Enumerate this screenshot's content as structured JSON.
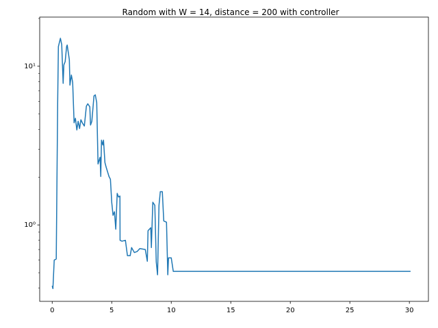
{
  "chart_data": {
    "type": "line",
    "title": "Random with W = 14, distance = 200 with controller",
    "x": [
      0,
      0.06,
      0.17,
      0.34,
      0.46,
      0.52,
      0.69,
      0.8,
      0.92,
      0.98,
      1.09,
      1.21,
      1.26,
      1.44,
      1.49,
      1.61,
      1.72,
      1.84,
      1.95,
      2.07,
      2.18,
      2.3,
      2.41,
      2.53,
      2.7,
      2.87,
      2.99,
      3.16,
      3.22,
      3.33,
      3.51,
      3.62,
      3.74,
      3.85,
      4.02,
      4.08,
      4.14,
      4.25,
      4.31,
      4.43,
      4.54,
      4.66,
      4.77,
      4.89,
      5.0,
      5.11,
      5.23,
      5.34,
      5.46,
      5.57,
      5.69,
      5.7,
      5.86,
      6.15,
      6.32,
      6.55,
      6.67,
      6.9,
      7.13,
      7.36,
      7.82,
      7.99,
      8.05,
      8.28,
      8.33,
      8.45,
      8.62,
      8.74,
      8.85,
      8.97,
      9.08,
      9.25,
      9.37,
      9.6,
      9.71,
      9.77,
      10.0,
      10.17,
      30.1
    ],
    "series": [
      {
        "color": "#1f77b4",
        "values": [
          0.413,
          0.397,
          0.6,
          0.61,
          5.9,
          13.3,
          15.0,
          13.7,
          7.8,
          10.2,
          10.7,
          13.3,
          13.6,
          11.0,
          7.6,
          8.8,
          7.9,
          4.4,
          4.7,
          3.97,
          4.5,
          4.05,
          4.6,
          4.4,
          4.2,
          5.6,
          5.8,
          5.55,
          4.26,
          4.5,
          6.5,
          6.6,
          5.9,
          2.42,
          2.67,
          2.02,
          3.42,
          3.19,
          3.42,
          2.47,
          2.3,
          2.15,
          2.02,
          1.94,
          1.39,
          1.15,
          1.21,
          0.94,
          1.58,
          1.5,
          1.52,
          0.8,
          0.79,
          0.8,
          0.64,
          0.64,
          0.72,
          0.67,
          0.68,
          0.71,
          0.7,
          0.59,
          0.92,
          0.96,
          0.72,
          1.39,
          1.33,
          0.585,
          0.485,
          1.33,
          1.62,
          1.62,
          1.06,
          1.04,
          0.485,
          0.62,
          0.62,
          0.51,
          0.51
        ]
      }
    ],
    "xlim": [
      -1.05,
      31.6
    ],
    "xticks": [
      0,
      5,
      10,
      15,
      20,
      25,
      30
    ],
    "ylim": [
      0.33,
      20.4
    ],
    "yscale": "log",
    "yticks": [
      {
        "value": 1,
        "label": "10⁰"
      },
      {
        "value": 10,
        "label": "10¹"
      }
    ],
    "yminorticks": [
      0.4,
      0.5,
      0.6,
      0.7,
      0.8,
      0.9,
      2,
      3,
      4,
      5,
      6,
      7,
      8,
      9,
      20
    ]
  }
}
